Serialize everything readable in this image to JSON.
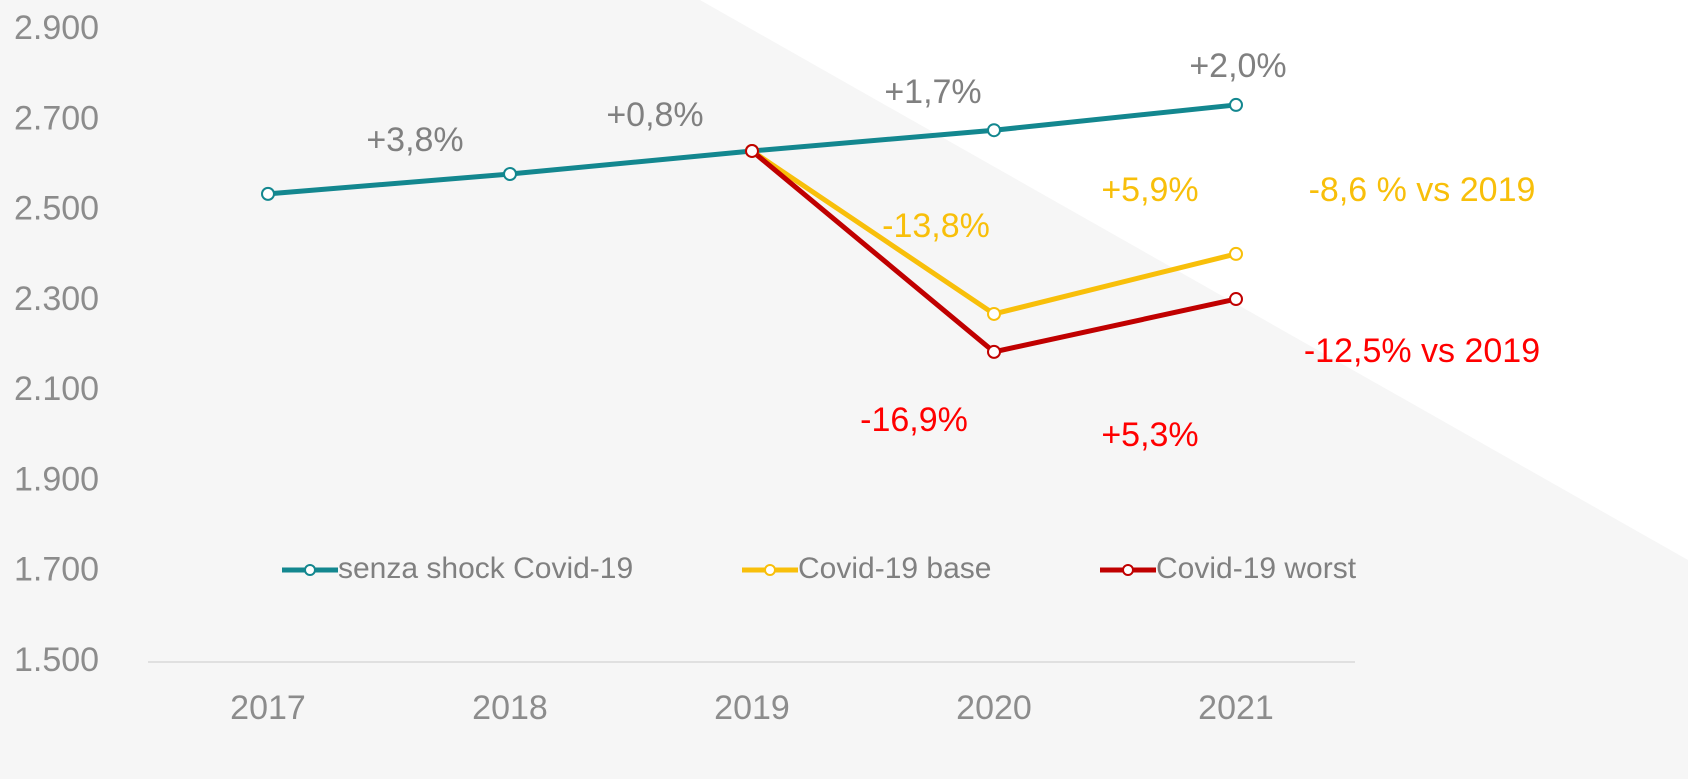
{
  "chart_data": {
    "type": "line",
    "categories": [
      "2017",
      "2018",
      "2019",
      "2020",
      "2021"
    ],
    "series": [
      {
        "name": "senza shock Covid-19",
        "color": "#13878f",
        "values": [
          2537,
          2581,
          2632,
          2678,
          2734
        ]
      },
      {
        "name": "Covid-19 base",
        "color": "#f8bf0a",
        "values": [
          null,
          null,
          2632,
          2271,
          2404
        ]
      },
      {
        "name": "Covid-19 worst",
        "color": "#c00000",
        "values": [
          null,
          null,
          2632,
          2187,
          2304
        ]
      }
    ],
    "ylim": [
      1500,
      2900
    ],
    "yticks": [
      {
        "value": 1500,
        "label": "1.500"
      },
      {
        "value": 1700,
        "label": "1.700"
      },
      {
        "value": 1900,
        "label": "1.900"
      },
      {
        "value": 2100,
        "label": "2.100"
      },
      {
        "value": 2300,
        "label": "2.300"
      },
      {
        "value": 2500,
        "label": "2.500"
      },
      {
        "value": 2700,
        "label": "2.700"
      },
      {
        "value": 2900,
        "label": "2.900"
      }
    ],
    "annotations": [
      {
        "text": "+3,8%",
        "color": "#808080"
      },
      {
        "text": "+0,8%",
        "color": "#808080"
      },
      {
        "text": "+1,7%",
        "color": "#808080"
      },
      {
        "text": "+2,0%",
        "color": "#808080"
      },
      {
        "text": "-13,8%",
        "color": "#f8bf0a"
      },
      {
        "text": "+5,9%",
        "color": "#f8bf0a"
      },
      {
        "text": "-8,6 % vs 2019",
        "color": "#f8bf0a"
      },
      {
        "text": "-16,9%",
        "color": "#ff0000"
      },
      {
        "text": "+5,3%",
        "color": "#ff0000"
      },
      {
        "text": "-12,5% vs 2019",
        "color": "#ff0000"
      }
    ],
    "legend": "inside-bottom"
  }
}
